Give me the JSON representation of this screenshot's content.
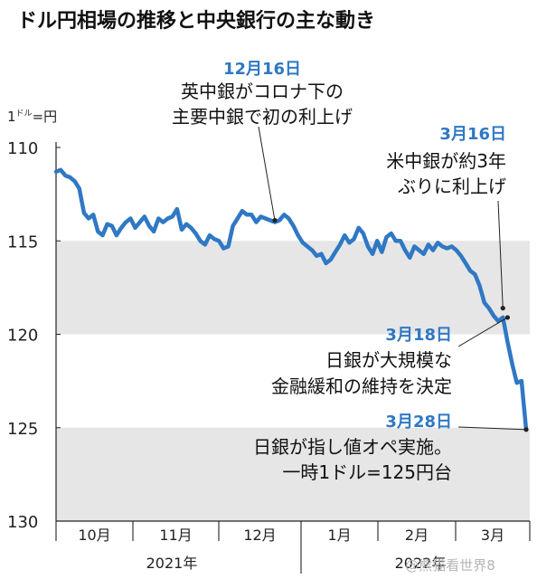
{
  "chart_data": {
    "type": "line",
    "title": "ドル円相場の推移と中央銀行の主な動き",
    "ylabel_parts": [
      "1",
      "ドル",
      "=円"
    ],
    "y_ticks": [
      "110",
      "115",
      "120",
      "125",
      "130"
    ],
    "ylim": [
      110,
      130
    ],
    "y_inverted": true,
    "shaded_bands": [
      [
        115,
        120
      ],
      [
        125,
        130
      ]
    ],
    "x_month_labels": [
      "10月",
      "11月",
      "12月",
      "1月",
      "2月",
      "3月"
    ],
    "x_year_labels": [
      "2021年",
      "2022年"
    ],
    "series": [
      {
        "color": "#2f78c4",
        "values": [
          111.3,
          111.2,
          111.5,
          111.6,
          111.8,
          112.2,
          113.5,
          113.8,
          113.6,
          114.5,
          114.7,
          114.1,
          114.2,
          114.7,
          114.3,
          114.0,
          113.8,
          114.3,
          114.0,
          113.7,
          114.2,
          114.5,
          113.8,
          114.0,
          113.8,
          113.7,
          113.3,
          114.4,
          114.1,
          114.3,
          114.6,
          115.0,
          115.2,
          114.7,
          114.9,
          115.0,
          115.4,
          115.3,
          114.2,
          113.8,
          113.4,
          113.6,
          113.6,
          114.0,
          113.7,
          113.8,
          113.9,
          114.0,
          113.9,
          113.6,
          113.8,
          114.2,
          114.7,
          115.1,
          115.3,
          115.5,
          115.8,
          115.7,
          116.2,
          116.0,
          115.6,
          115.2,
          114.7,
          115.1,
          114.9,
          114.3,
          114.6,
          115.3,
          115.7,
          115.0,
          115.6,
          114.8,
          114.6,
          115.0,
          115.0,
          115.5,
          115.9,
          115.3,
          115.5,
          115.7,
          115.2,
          115.5,
          115.1,
          115.3,
          115.4,
          115.3,
          115.5,
          115.8,
          116.2,
          116.6,
          116.8,
          117.4,
          118.3,
          118.6,
          119.0,
          119.3,
          119.1,
          120.4,
          121.6,
          122.6,
          122.5,
          125.1
        ]
      }
    ],
    "annotations": [
      {
        "date": "12月16日",
        "lines": [
          "英中銀がコロナ下の",
          "主要中銀で初の利上げ"
        ],
        "value": 113.9
      },
      {
        "date": "3月16日",
        "lines": [
          "米中銀が約3年",
          "ぶりに利上げ"
        ],
        "value": 118.6
      },
      {
        "date": "3月18日",
        "lines": [
          "日銀が大規模な",
          "金融緩和の維持を決定"
        ],
        "value": 119.1
      },
      {
        "date": "3月28日",
        "lines": [
          "日銀が指し値オペ実施。",
          "一時1ドル=125円台"
        ],
        "value": 125.1
      }
    ],
    "grid": false,
    "legend": "none"
  },
  "watermark": "@熊猫看世界8"
}
